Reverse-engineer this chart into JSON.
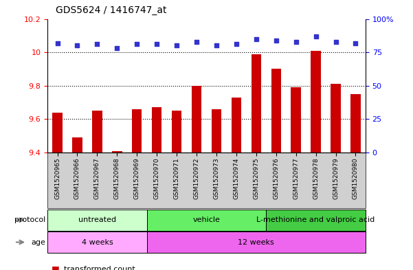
{
  "title": "GDS5624 / 1416747_at",
  "samples": [
    "GSM1520965",
    "GSM1520966",
    "GSM1520967",
    "GSM1520968",
    "GSM1520969",
    "GSM1520970",
    "GSM1520971",
    "GSM1520972",
    "GSM1520973",
    "GSM1520974",
    "GSM1520975",
    "GSM1520976",
    "GSM1520977",
    "GSM1520978",
    "GSM1520979",
    "GSM1520980"
  ],
  "transformed_count": [
    9.64,
    9.49,
    9.65,
    9.41,
    9.66,
    9.67,
    9.65,
    9.8,
    9.66,
    9.73,
    9.99,
    9.9,
    9.79,
    10.01,
    9.81,
    9.75
  ],
  "percentile_rank": [
    82,
    80,
    81,
    78,
    81,
    81,
    80,
    83,
    80,
    81,
    85,
    84,
    83,
    87,
    83,
    82
  ],
  "ylim_left": [
    9.4,
    10.2
  ],
  "ylim_right": [
    0,
    100
  ],
  "yticks_left": [
    9.4,
    9.6,
    9.8,
    10.0,
    10.2
  ],
  "yticks_right": [
    0,
    25,
    50,
    75,
    100
  ],
  "bar_color": "#cc0000",
  "dot_color": "#3333cc",
  "protocol_groups": [
    {
      "label": "untreated",
      "start": 0,
      "end": 5,
      "color": "#ccffcc"
    },
    {
      "label": "vehicle",
      "start": 5,
      "end": 11,
      "color": "#66ee66"
    },
    {
      "label": "L-methionine and valproic acid",
      "start": 11,
      "end": 16,
      "color": "#44cc44"
    }
  ],
  "age_groups": [
    {
      "label": "4 weeks",
      "start": 0,
      "end": 5,
      "color": "#ffaaff"
    },
    {
      "label": "12 weeks",
      "start": 5,
      "end": 16,
      "color": "#ee66ee"
    }
  ],
  "chart_bg": "#ffffff",
  "grid_dotted_at": [
    9.6,
    9.8,
    10.0
  ],
  "xticklabel_area_bg": "#d0d0d0"
}
